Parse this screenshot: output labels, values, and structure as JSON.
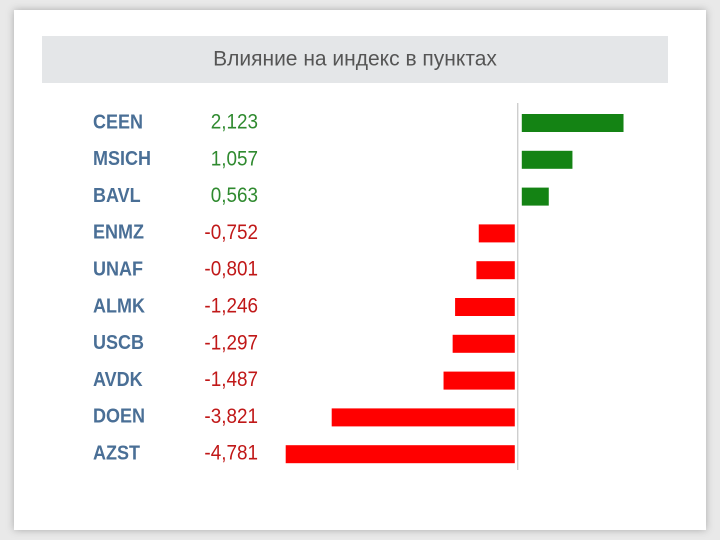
{
  "chart_data": {
    "type": "hbar",
    "title": "Влияние на индекс в пунктах",
    "categories": [
      "CEEN",
      "MSICH",
      "BAVL",
      "ENMZ",
      "UNAF",
      "ALMK",
      "USCB",
      "AVDK",
      "DOEN",
      "AZST"
    ],
    "values": [
      2.123,
      1.057,
      0.563,
      -0.752,
      -0.801,
      -1.246,
      -1.297,
      -1.487,
      -3.821,
      -4.781
    ],
    "value_labels": [
      "2,123",
      "1,057",
      "0,563",
      "-0,752",
      "-0,801",
      "-1,246",
      "-1,297",
      "-1,487",
      "-3,821",
      "-4,781"
    ],
    "positive_color": "#148314",
    "negative_color": "#ff0000",
    "xlim": [
      -4.9,
      2.3
    ]
  }
}
